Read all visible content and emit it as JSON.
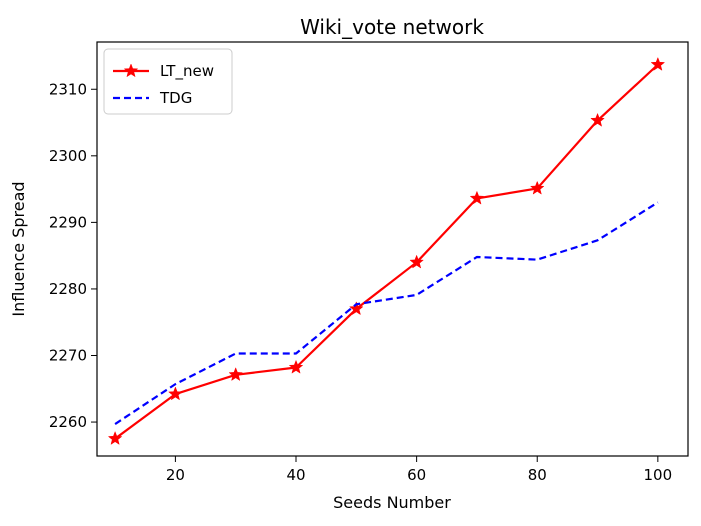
{
  "chart_data": {
    "type": "line",
    "title": "Wiki_vote network",
    "xlabel": "Seeds Number",
    "ylabel": "Influence Spread",
    "xlim": [
      7,
      105
    ],
    "ylim": [
      2254.9,
      2317.1
    ],
    "x_ticks": [
      20,
      40,
      60,
      80,
      100
    ],
    "y_ticks": [
      2260,
      2270,
      2280,
      2290,
      2300,
      2310
    ],
    "grid": false,
    "legend_position": "top-left",
    "series": [
      {
        "name": "LT_new",
        "color": "#ff0000",
        "line_style": "solid",
        "marker": "star",
        "x": [
          10,
          20,
          30,
          40,
          50,
          60,
          70,
          80,
          90,
          100
        ],
        "y": [
          2257.5,
          2264.2,
          2267.1,
          2268.2,
          2277.0,
          2284.0,
          2293.6,
          2295.1,
          2305.3,
          2313.7
        ]
      },
      {
        "name": "TDG",
        "color": "#0000ff",
        "line_style": "dashed",
        "marker": "none",
        "x": [
          10,
          20,
          30,
          40,
          50,
          60,
          70,
          80,
          90,
          100
        ],
        "y": [
          2259.7,
          2265.7,
          2270.3,
          2270.3,
          2277.7,
          2279.1,
          2284.8,
          2284.4,
          2287.3,
          2293.0
        ]
      }
    ]
  }
}
